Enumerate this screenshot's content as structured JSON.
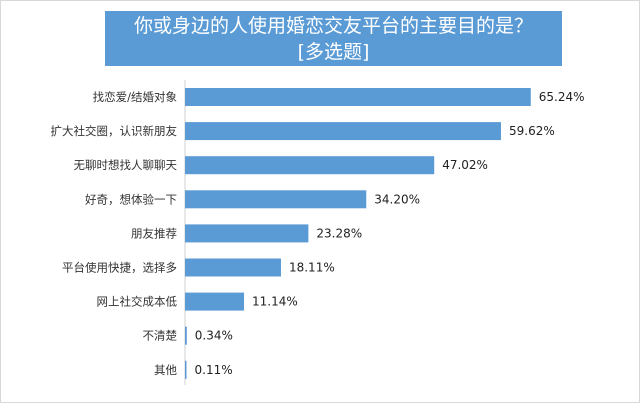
{
  "chart_data": {
    "type": "bar",
    "orientation": "horizontal",
    "title": "你或身边的人使用婚恋交友平台的主要目的是？",
    "subtitle": "[多选题]",
    "categories": [
      "找恋爱/结婚对象",
      "扩大社交圈，认识新朋友",
      "无聊时想找人聊聊天",
      "好奇，想体验一下",
      "朋友推荐",
      "平台使用快捷，选择多",
      "网上社交成本低",
      "不清楚",
      "其他"
    ],
    "values": [
      65.24,
      59.62,
      47.02,
      34.2,
      23.28,
      18.11,
      11.14,
      0.34,
      0.11
    ],
    "labels": [
      "65.24%",
      "59.62%",
      "47.02%",
      "34.20%",
      "23.28%",
      "18.11%",
      "11.14%",
      "0.34%",
      "0.11%"
    ],
    "xlabel": "",
    "ylabel": "",
    "unit": "%",
    "grid": false,
    "legend": "none",
    "color": "#5b9bd5"
  }
}
